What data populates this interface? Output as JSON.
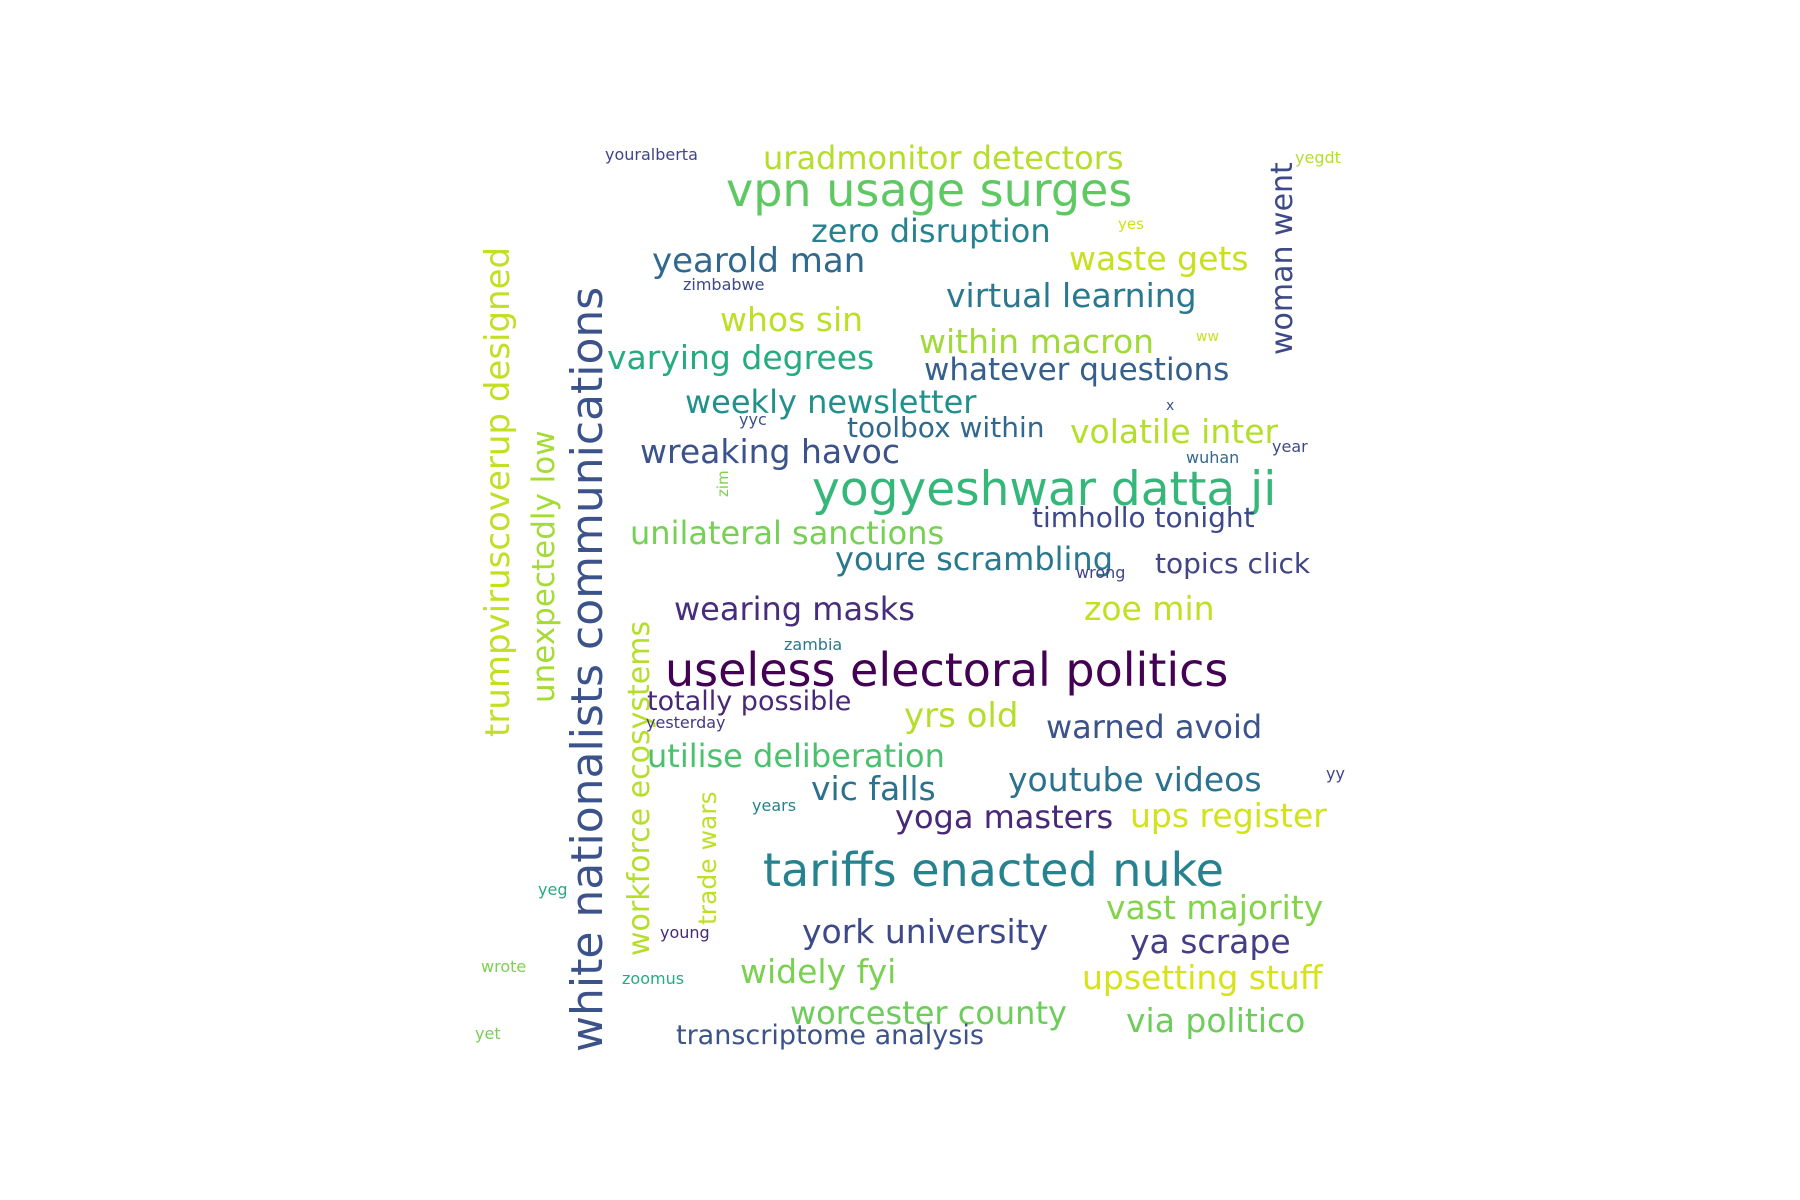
{
  "word_cloud": {
    "words": [
      {
        "text": "white nationalists communications",
        "color": "#3b528b"
      },
      {
        "text": "trumpviruscoverup designed",
        "color": "#c2df23"
      },
      {
        "text": "unexpectedly low",
        "color": "#a5db36"
      },
      {
        "text": "workforce ecosystems",
        "color": "#b5de2b"
      },
      {
        "text": "trade wars",
        "color": "#bddf26"
      },
      {
        "text": "woman went",
        "color": "#3e4989"
      },
      {
        "text": "zim",
        "color": "#7ad151"
      },
      {
        "text": "youralberta",
        "color": "#414487"
      },
      {
        "text": "uradmonitor detectors",
        "color": "#b5de2b"
      },
      {
        "text": "yegdt",
        "color": "#b5de2b"
      },
      {
        "text": "vpn usage surges",
        "color": "#5ec962"
      },
      {
        "text": "zero disruption",
        "color": "#26828e"
      },
      {
        "text": "yes",
        "color": "#d0e11c"
      },
      {
        "text": "yearold man",
        "color": "#31688e"
      },
      {
        "text": "waste gets",
        "color": "#c8e020"
      },
      {
        "text": "zimbabwe",
        "color": "#3e4989"
      },
      {
        "text": "virtual learning",
        "color": "#2a788e"
      },
      {
        "text": "whos sin",
        "color": "#bddf26"
      },
      {
        "text": "within macron",
        "color": "#a0da39"
      },
      {
        "text": "ww",
        "color": "#c8e020"
      },
      {
        "text": "varying degrees",
        "color": "#25ab82"
      },
      {
        "text": "whatever questions",
        "color": "#355f8d"
      },
      {
        "text": "weekly newsletter",
        "color": "#21918c"
      },
      {
        "text": "x",
        "color": "#3b528b"
      },
      {
        "text": "yyc",
        "color": "#3b528b"
      },
      {
        "text": "toolbox within",
        "color": "#31688e"
      },
      {
        "text": "volatile inter",
        "color": "#b5de2b"
      },
      {
        "text": "wreaking havoc",
        "color": "#3b528b"
      },
      {
        "text": "year",
        "color": "#3e4989"
      },
      {
        "text": "wuhan",
        "color": "#31688e"
      },
      {
        "text": "yogyeshwar datta ji",
        "color": "#35b779"
      },
      {
        "text": "timhollo tonight",
        "color": "#3e4989"
      },
      {
        "text": "unilateral sanctions",
        "color": "#75d054"
      },
      {
        "text": "youre scrambling",
        "color": "#2a788e"
      },
      {
        "text": "wrong",
        "color": "#414487"
      },
      {
        "text": "topics click",
        "color": "#414487"
      },
      {
        "text": "wearing masks",
        "color": "#472d7b"
      },
      {
        "text": "zoe min",
        "color": "#c2df23"
      },
      {
        "text": "zambia",
        "color": "#2a788e"
      },
      {
        "text": "useless electoral politics",
        "color": "#440154"
      },
      {
        "text": "totally possible",
        "color": "#482878"
      },
      {
        "text": "yesterday",
        "color": "#443983"
      },
      {
        "text": "yrs old",
        "color": "#b5de2b"
      },
      {
        "text": "warned avoid",
        "color": "#3b528b"
      },
      {
        "text": "utilise deliberation",
        "color": "#4ac16d"
      },
      {
        "text": "vic falls",
        "color": "#2c728e"
      },
      {
        "text": "youtube videos",
        "color": "#2c728e"
      },
      {
        "text": "yy",
        "color": "#414487"
      },
      {
        "text": "years",
        "color": "#26828e"
      },
      {
        "text": "yoga masters",
        "color": "#482878"
      },
      {
        "text": "ups register",
        "color": "#d2e21b"
      },
      {
        "text": "tariffs enacted nuke",
        "color": "#26828e"
      },
      {
        "text": "yeg",
        "color": "#25ab82"
      },
      {
        "text": "vast majority",
        "color": "#84d44b"
      },
      {
        "text": "york university",
        "color": "#3e4989"
      },
      {
        "text": "young",
        "color": "#482878"
      },
      {
        "text": "ya scrape",
        "color": "#433e85"
      },
      {
        "text": "wrote",
        "color": "#7ad151"
      },
      {
        "text": "zoomus",
        "color": "#25ab82"
      },
      {
        "text": "widely fyi",
        "color": "#7ad151"
      },
      {
        "text": "upsetting stuff",
        "color": "#d8e219"
      },
      {
        "text": "worcester county",
        "color": "#6ccd5a"
      },
      {
        "text": "via politico",
        "color": "#6ccd5a"
      },
      {
        "text": "yet",
        "color": "#75d054"
      },
      {
        "text": "transcriptome analysis",
        "color": "#3b528b"
      }
    ]
  }
}
